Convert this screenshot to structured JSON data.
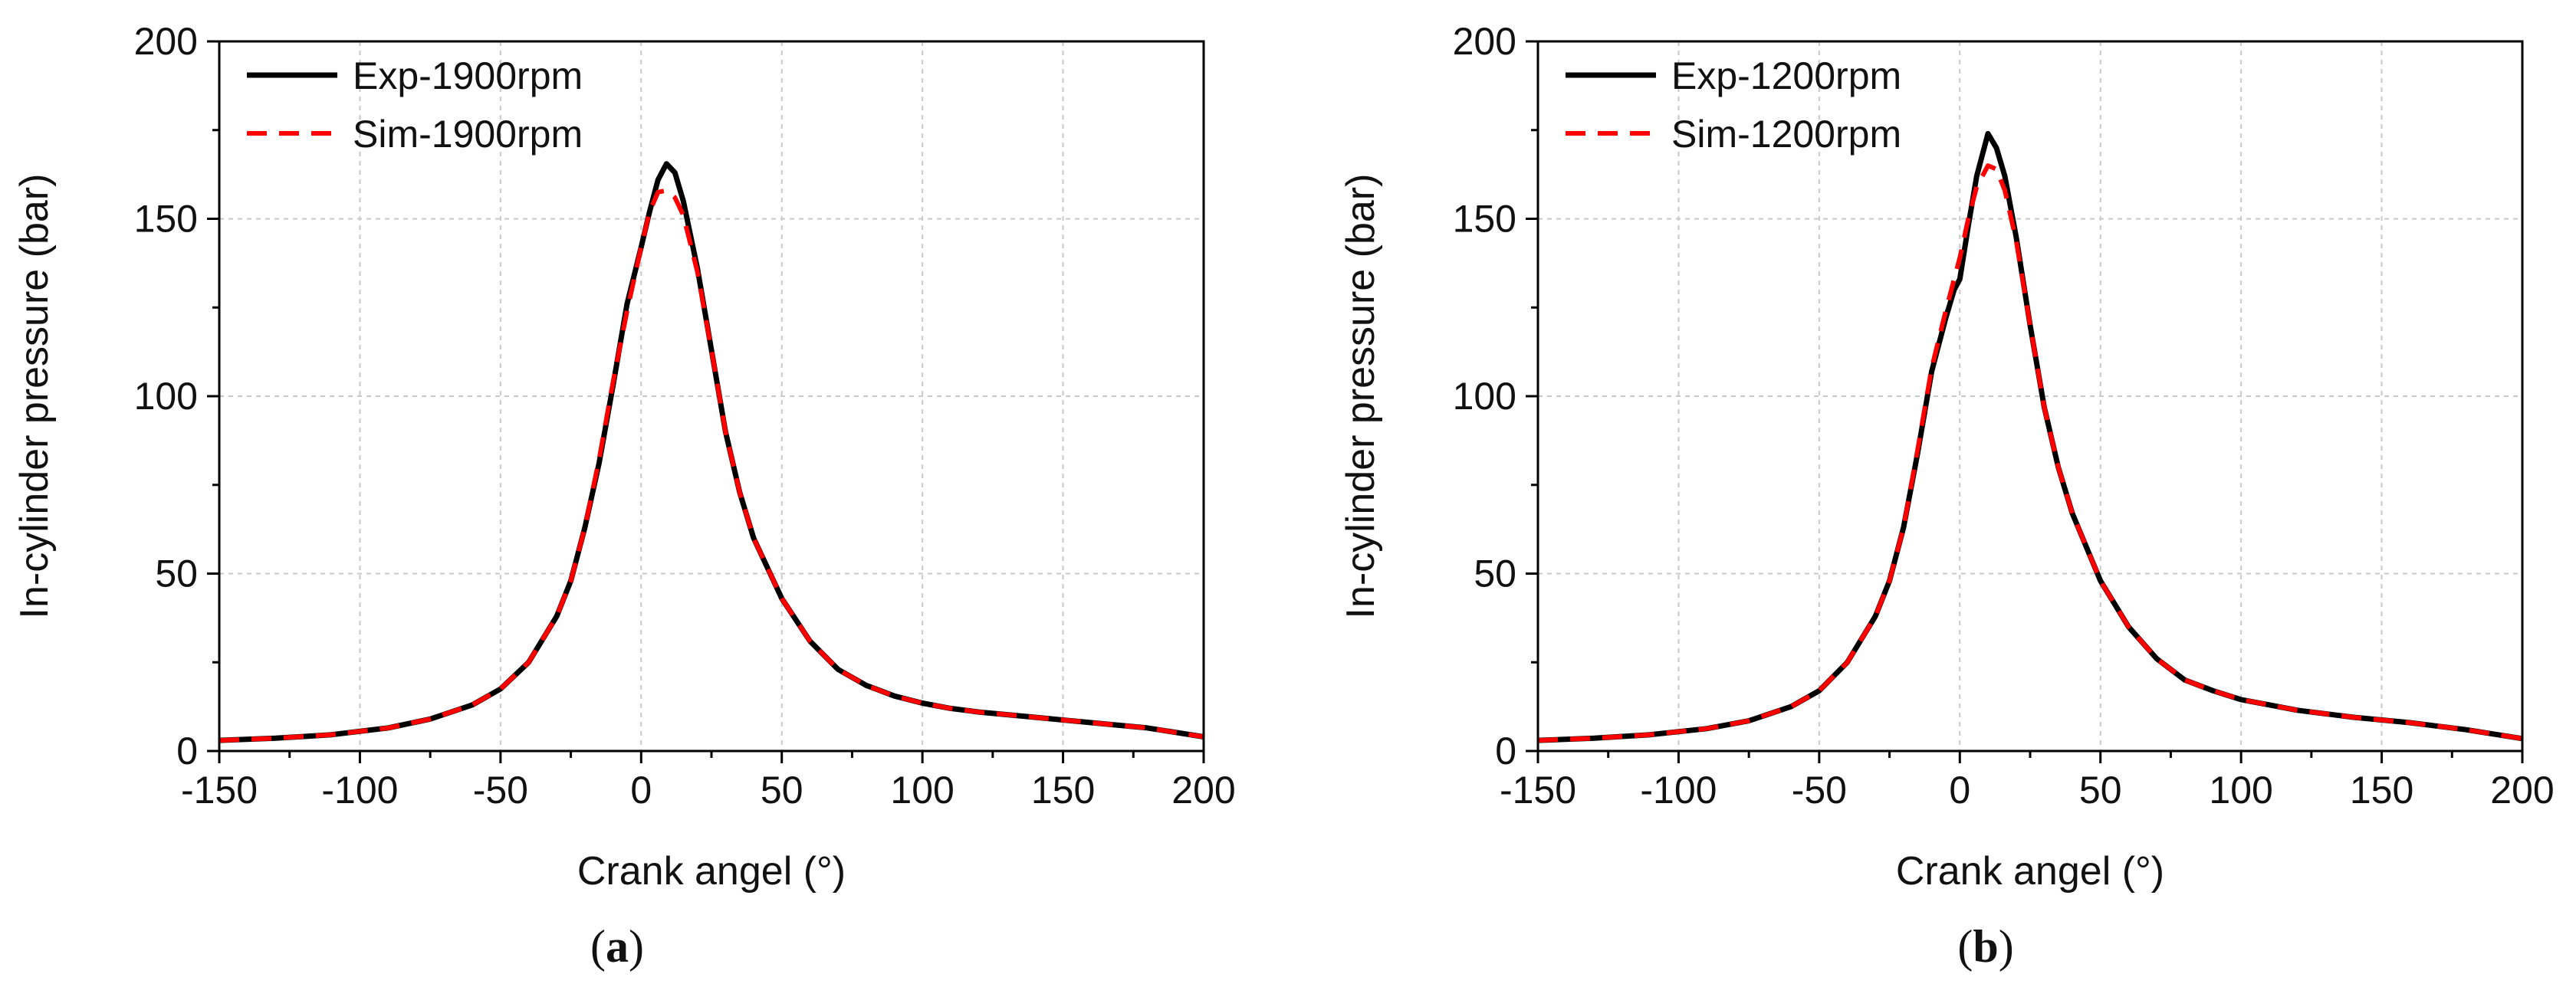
{
  "colors": {
    "experiment": "#000000",
    "simulation": "#ff0000",
    "grid": "#c8c8c8",
    "axis": "#000000"
  },
  "chart_data": [
    {
      "type": "line",
      "panel_label": "(a)",
      "panel_letter": "a",
      "xlabel": "Crank angel (°)",
      "ylabel": "In-cylinder pressure (bar)",
      "xlim": [
        -150,
        200
      ],
      "ylim": [
        0,
        200
      ],
      "xticks": [
        -150,
        -100,
        -50,
        0,
        50,
        100,
        150,
        200
      ],
      "yticks": [
        0,
        50,
        100,
        150,
        200
      ],
      "grid": true,
      "legend_position": "top-left",
      "series": [
        {
          "name": "Exp-1900rpm",
          "style": "solid",
          "x": [
            -150,
            -130,
            -110,
            -90,
            -75,
            -60,
            -50,
            -40,
            -30,
            -25,
            -20,
            -15,
            -10,
            -5,
            0,
            3,
            6,
            9,
            12,
            15,
            20,
            25,
            30,
            35,
            40,
            50,
            60,
            70,
            80,
            90,
            100,
            110,
            120,
            140,
            160,
            180,
            200
          ],
          "y": [
            3,
            3.6,
            4.6,
            6.5,
            9,
            13,
            17.5,
            25,
            38,
            48,
            63,
            81,
            103,
            126,
            142,
            152,
            161,
            165.5,
            163,
            155,
            136,
            113,
            90,
            73,
            60,
            43,
            31,
            23,
            18.5,
            15.5,
            13.5,
            12,
            11,
            9.5,
            8,
            6.5,
            4
          ]
        },
        {
          "name": "Sim-1900rpm",
          "style": "dashed",
          "x": [
            -150,
            -130,
            -110,
            -90,
            -75,
            -60,
            -50,
            -40,
            -30,
            -25,
            -20,
            -15,
            -10,
            -5,
            0,
            3,
            6,
            9,
            12,
            15,
            20,
            25,
            30,
            35,
            40,
            50,
            60,
            70,
            80,
            90,
            100,
            110,
            120,
            140,
            160,
            180,
            200
          ],
          "y": [
            3,
            3.6,
            4.6,
            6.5,
            9,
            13,
            17.5,
            25,
            38,
            48,
            63,
            82,
            104,
            124,
            142,
            152,
            157.5,
            158,
            156,
            151,
            135,
            113,
            90,
            73,
            60,
            43,
            31,
            23,
            18.5,
            15.5,
            13.5,
            12,
            11,
            9.5,
            8,
            6.5,
            4
          ]
        }
      ]
    },
    {
      "type": "line",
      "panel_label": "(b)",
      "panel_letter": "b",
      "xlabel": "Crank angel (°)",
      "ylabel": "In-cylinder pressure (bar)",
      "xlim": [
        -150,
        200
      ],
      "ylim": [
        0,
        200
      ],
      "xticks": [
        -150,
        -100,
        -50,
        0,
        50,
        100,
        150,
        200
      ],
      "yticks": [
        0,
        50,
        100,
        150,
        200
      ],
      "grid": true,
      "legend_position": "top-left",
      "series": [
        {
          "name": "Exp-1200rpm",
          "style": "solid",
          "x": [
            -150,
            -130,
            -110,
            -90,
            -75,
            -60,
            -50,
            -40,
            -30,
            -25,
            -20,
            -15,
            -10,
            -5,
            -2,
            0,
            3,
            6,
            10,
            13,
            16,
            20,
            25,
            30,
            35,
            40,
            50,
            60,
            70,
            80,
            90,
            100,
            110,
            120,
            140,
            160,
            180,
            200
          ],
          "y": [
            3,
            3.6,
            4.6,
            6.3,
            8.5,
            12.5,
            17,
            25,
            38,
            48,
            63,
            84,
            107,
            122,
            130,
            133,
            148,
            162,
            174,
            170,
            162,
            145,
            120,
            97,
            80,
            67,
            48,
            35,
            26,
            20,
            17,
            14.5,
            13,
            11.5,
            9.5,
            8,
            6,
            3.5
          ]
        },
        {
          "name": "Sim-1200rpm",
          "style": "dashed",
          "x": [
            -150,
            -130,
            -110,
            -90,
            -75,
            -60,
            -50,
            -40,
            -30,
            -25,
            -20,
            -15,
            -10,
            -5,
            -2,
            0,
            3,
            6,
            10,
            13,
            16,
            20,
            25,
            30,
            35,
            40,
            50,
            60,
            70,
            80,
            90,
            100,
            110,
            120,
            140,
            160,
            180,
            200
          ],
          "y": [
            3,
            3.6,
            4.6,
            6.3,
            8.5,
            12.5,
            17,
            25,
            38,
            48,
            63,
            85,
            108,
            124,
            133,
            139,
            150,
            159,
            165,
            164,
            158,
            144,
            120,
            97,
            80,
            67,
            48,
            35,
            26,
            20,
            17,
            14.5,
            13,
            11.5,
            9.5,
            8,
            6,
            3.5
          ]
        }
      ]
    }
  ]
}
